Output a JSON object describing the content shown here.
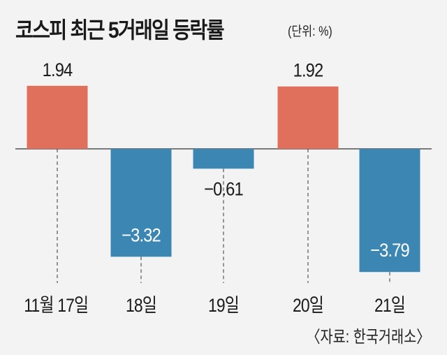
{
  "chart_data": {
    "type": "bar",
    "title": "코스피 최근 5거래일 등락률",
    "unit_note": "(단위: %)",
    "categories": [
      "11월 17일",
      "18일",
      "19일",
      "20일",
      "21일"
    ],
    "values": [
      1.94,
      -3.32,
      -0.61,
      1.92,
      -3.79
    ],
    "data_labels": [
      "1.94",
      "−3.32",
      "−0.61",
      "1.92",
      "−3.79"
    ],
    "source": "〈자료: 한국거래소〉",
    "grid": false,
    "legend": "none",
    "colors": {
      "positive": "#e0705b",
      "negative": "#3b86b3",
      "background": "#f3f3f3",
      "text": "#1a1a1a"
    }
  }
}
